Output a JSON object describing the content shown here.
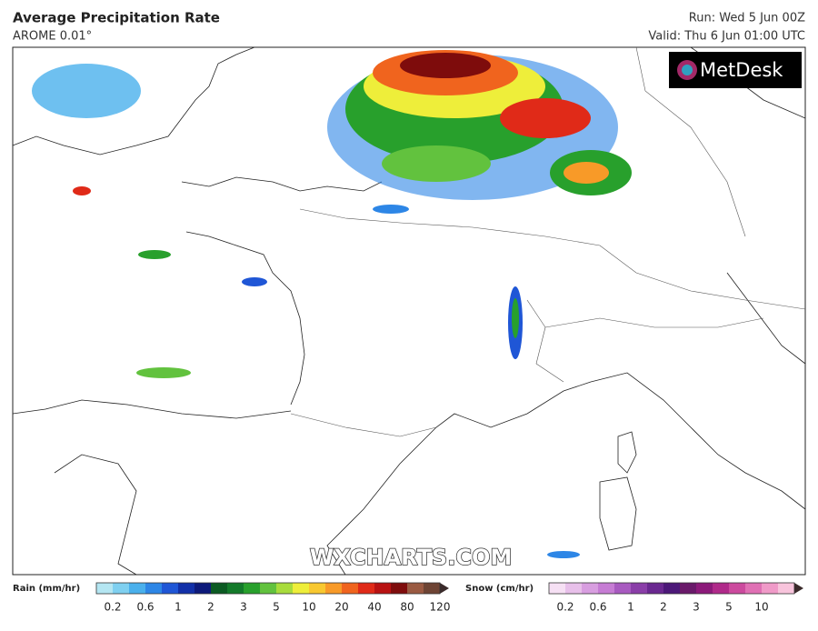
{
  "header": {
    "title": "Average Precipitation Rate",
    "model": "AROME 0.01°",
    "run": "Run: Wed 5 Jun 00Z",
    "valid": "Valid: Thu 6 Jun 01:00 UTC"
  },
  "logo": "MetDesk",
  "watermark": "WXCHARTS.COM",
  "legend": {
    "rain": {
      "label": "Rain (mm/hr)",
      "ticks": [
        0.2,
        0.6,
        1,
        2,
        3,
        5,
        10,
        20,
        40,
        80,
        120
      ],
      "colors": [
        "#b4e6f2",
        "#7fd0f0",
        "#4ab0ec",
        "#2d86e6",
        "#1f56d6",
        "#1230a8",
        "#0d1a7a",
        "#0b5a22",
        "#137a2a",
        "#28a02c",
        "#62c23e",
        "#a8dc3c",
        "#eeee3a",
        "#f8c830",
        "#f89a28",
        "#f0641e",
        "#e02a18",
        "#b81212",
        "#7e0c0c",
        "#9a5a42",
        "#6e4434"
      ]
    },
    "snow": {
      "label": "Snow (cm/hr)",
      "ticks": [
        0.2,
        0.6,
        1,
        2,
        3,
        5,
        10
      ],
      "colors": [
        "#f6e0f4",
        "#e8c0ea",
        "#d89ee0",
        "#c67cd4",
        "#a85ac0",
        "#8a3ea8",
        "#6a2890",
        "#4c1878",
        "#6a1a6a",
        "#8c1a7a",
        "#b02a8a",
        "#cc4a9e",
        "#e070b4",
        "#f09ac8",
        "#f8c4dc"
      ]
    }
  }
}
